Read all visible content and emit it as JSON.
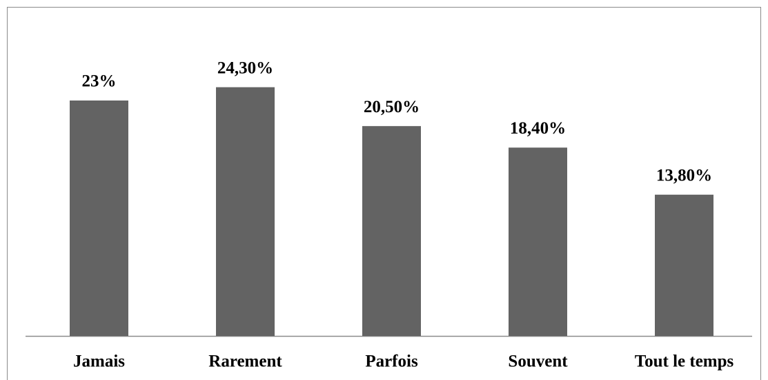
{
  "chart_data": {
    "type": "bar",
    "categories": [
      "Jamais",
      "Rarement",
      "Parfois",
      "Souvent",
      "Tout le temps"
    ],
    "values": [
      23,
      24.3,
      20.5,
      18.4,
      13.8
    ],
    "value_labels": [
      "23%",
      "24,30%",
      "20,50%",
      "18,40%",
      "13,80%"
    ],
    "color": "#636363"
  }
}
